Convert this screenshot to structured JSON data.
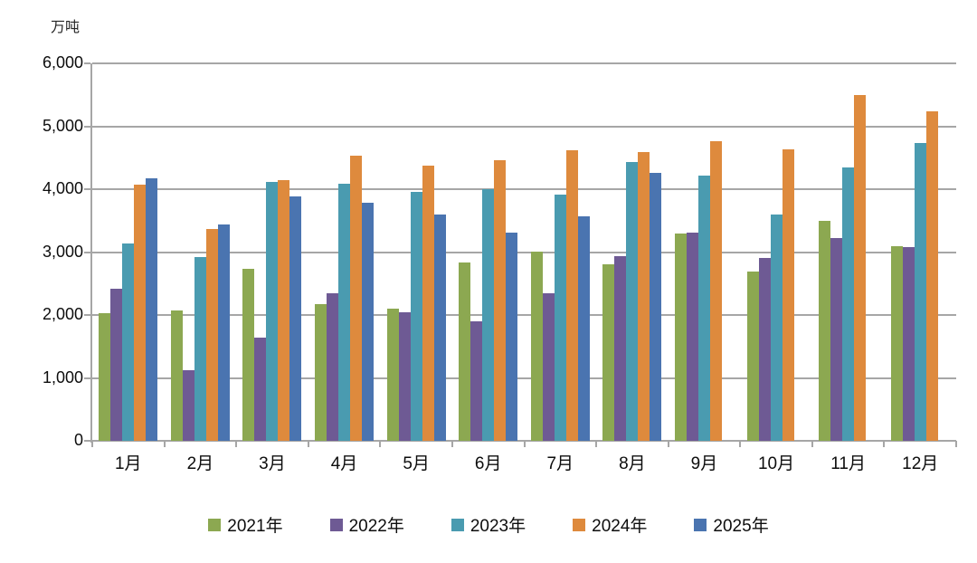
{
  "chart_data": {
    "type": "bar",
    "title": "",
    "unit_label": "万吨",
    "xlabel": "",
    "ylabel": "万吨",
    "ylim": [
      0,
      6000
    ],
    "ytick_interval": 1000,
    "yticks": [
      {
        "value": 0,
        "label": "0"
      },
      {
        "value": 1000,
        "label": "1,000"
      },
      {
        "value": 2000,
        "label": "2,000"
      },
      {
        "value": 3000,
        "label": "3,000"
      },
      {
        "value": 4000,
        "label": "4,000"
      },
      {
        "value": 5000,
        "label": "5,000"
      },
      {
        "value": 6000,
        "label": "6,000"
      }
    ],
    "grid": true,
    "legend_position": "bottom",
    "categories": [
      "1月",
      "2月",
      "3月",
      "4月",
      "5月",
      "6月",
      "7月",
      "8月",
      "9月",
      "10月",
      "11月",
      "12月"
    ],
    "series": [
      {
        "name": "2021年",
        "color": "#8CA851",
        "values": [
          2030,
          2070,
          2740,
          2170,
          2100,
          2840,
          3010,
          2800,
          3290,
          2690,
          3500,
          3090
        ]
      },
      {
        "name": "2022年",
        "color": "#6E5A94",
        "values": [
          2420,
          1120,
          1640,
          2350,
          2050,
          1900,
          2340,
          2940,
          3310,
          2910,
          3220,
          3080
        ]
      },
      {
        "name": "2023年",
        "color": "#4A9BB0",
        "values": [
          3140,
          2920,
          4110,
          4080,
          3960,
          4000,
          3920,
          4430,
          4210,
          3600,
          4350,
          4730
        ]
      },
      {
        "name": "2024年",
        "color": "#DE8A3D",
        "values": [
          4070,
          3370,
          4140,
          4530,
          4380,
          4460,
          4620,
          4590,
          4760,
          4630,
          5500,
          5240
        ]
      },
      {
        "name": "2025年",
        "color": "#4A74B0",
        "values": [
          4170,
          3440,
          3880,
          3790,
          3600,
          3310,
          3570,
          4260,
          null,
          null,
          null,
          null
        ]
      }
    ]
  }
}
